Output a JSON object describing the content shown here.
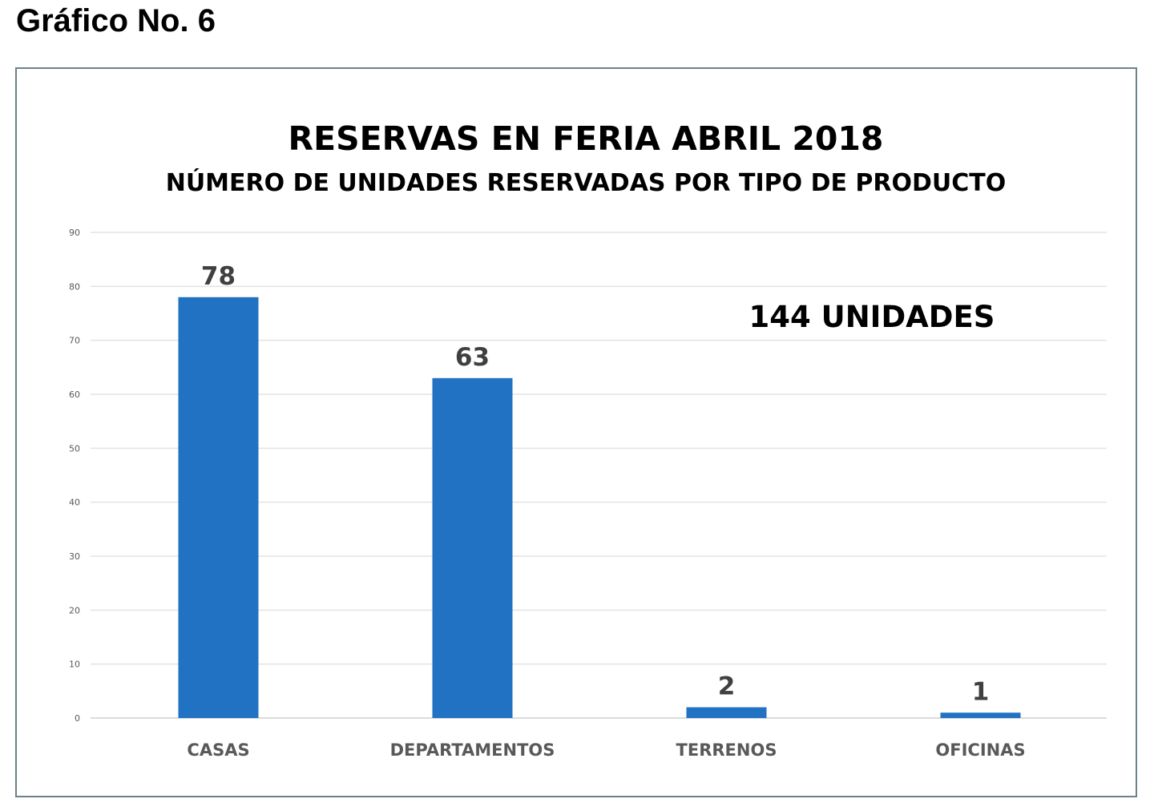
{
  "heading": "Gráfico No. 6",
  "chart_data": {
    "type": "bar",
    "title": "RESERVAS EN FERIA ABRIL 2018",
    "subtitle": "NÚMERO DE UNIDADES RESERVADAS POR TIPO DE PRODUCTO",
    "annotation": "144 UNIDADES",
    "categories": [
      "CASAS",
      "DEPARTAMENTOS",
      "TERRENOS",
      "OFICINAS"
    ],
    "values": [
      78,
      63,
      2,
      1
    ],
    "xlabel": "",
    "ylabel": "",
    "ylim": [
      0,
      90
    ],
    "yticks": [
      0,
      10,
      20,
      30,
      40,
      50,
      60,
      70,
      80,
      90
    ],
    "grid": true,
    "bar_color": "#2272c3"
  }
}
